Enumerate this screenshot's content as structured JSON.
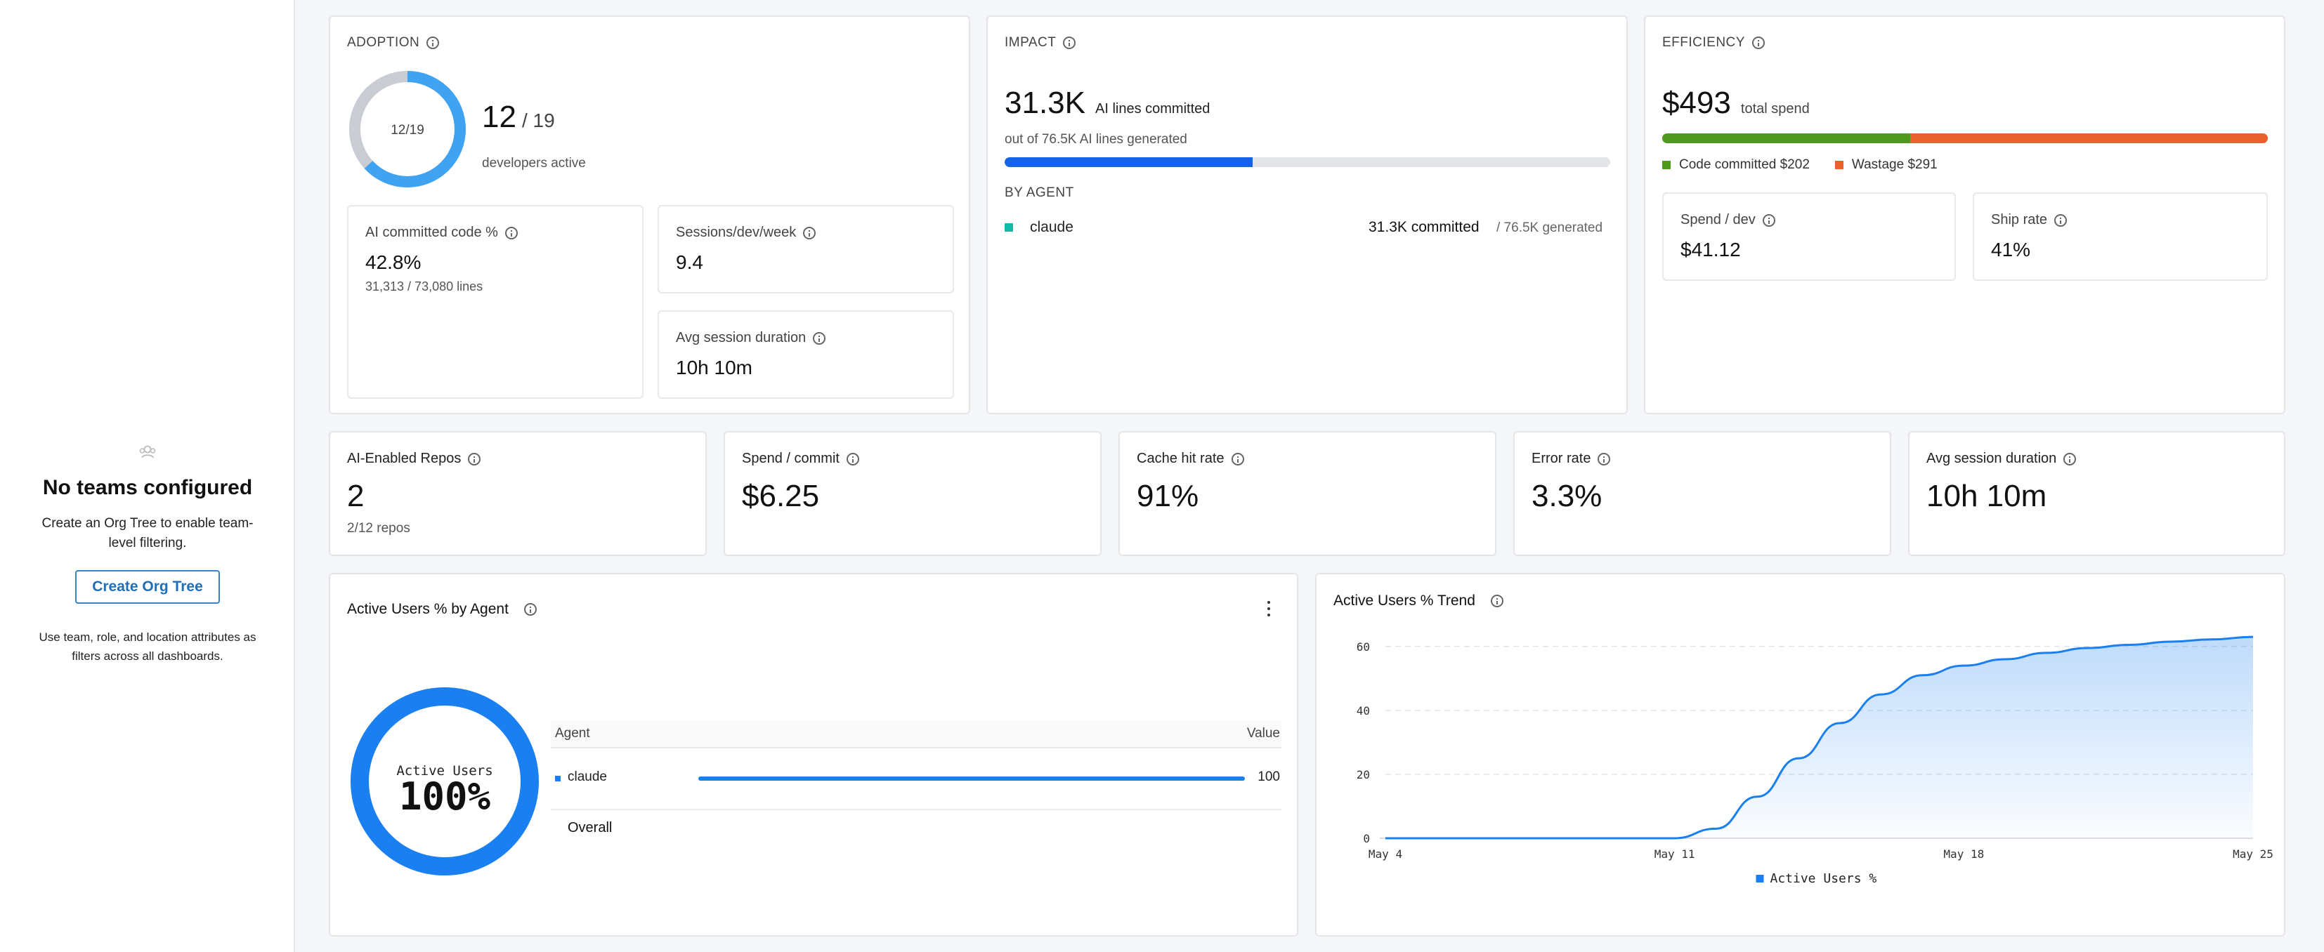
{
  "sidebar": {
    "empty_title": "No teams configured",
    "empty_desc": "Create an Org Tree to enable team-level filtering.",
    "create_button": "Create Org Tree",
    "footnote": "Use team, role, and location attributes as filters across all dashboards."
  },
  "adoption": {
    "caption": "ADOPTION",
    "ring_label": "12/19",
    "active_count": "12",
    "total": "/ 19",
    "active_label": "developers active",
    "ai_code_label": "AI committed code %",
    "ai_code_value": "42.8%",
    "ai_code_lines": "31,313 / 73,080 lines",
    "sessions_label": "Sessions/dev/week",
    "sessions_value": "9.4",
    "avg_session_label": "Avg session duration",
    "avg_session_value": "10h 10m",
    "active_fraction": 0.632
  },
  "impact": {
    "caption": "IMPACT",
    "lines_committed": "31.3K",
    "lines_committed_label": "AI lines committed",
    "generated_note": "out of 76.5K AI lines generated",
    "progress_fraction": 0.41,
    "by_agent_caption": "BY AGENT",
    "agent_name": "claude",
    "agent_committed": "31.3K committed",
    "agent_generated": "/ 76.5K generated",
    "agent_color": "#14b8a6"
  },
  "efficiency": {
    "caption": "EFFICIENCY",
    "total_spend": "$493",
    "total_spend_label": "total spend",
    "committed_fraction": 0.41,
    "committed_label": "Code committed $202",
    "wastage_label": "Wastage $291",
    "committed_color": "#4d9a1f",
    "wastage_color": "#e8612c",
    "spend_dev_label": "Spend / dev",
    "spend_dev_value": "$41.12",
    "ship_rate_label": "Ship rate",
    "ship_rate_value": "41%"
  },
  "kpis": [
    {
      "label": "AI-Enabled Repos",
      "value": "2",
      "sub": "2/12 repos"
    },
    {
      "label": "Spend / commit",
      "value": "$6.25",
      "sub": ""
    },
    {
      "label": "Cache hit rate",
      "value": "91%",
      "sub": ""
    },
    {
      "label": "Error rate",
      "value": "3.3%",
      "sub": ""
    },
    {
      "label": "Avg session duration",
      "value": "10h 10m",
      "sub": ""
    }
  ],
  "agent_panel": {
    "title": "Active Users % by Agent",
    "donut_label": "Active Users",
    "donut_value": "100%",
    "col_agent": "Agent",
    "col_value": "Value",
    "row_agent": "claude",
    "row_value": "100",
    "row_fraction": 1.0,
    "overall_label": "Overall",
    "accent": "#1a7ff0"
  },
  "trend_panel": {
    "title": "Active Users % Trend",
    "legend": "Active Users %"
  },
  "chart_data": {
    "type": "area",
    "title": "Active Users % Trend",
    "x": [
      "May 4",
      "May 11",
      "May 18",
      "May 25"
    ],
    "x_days": [
      0,
      7,
      14,
      21
    ],
    "ylim": [
      0,
      65
    ],
    "yticks": [
      0,
      20,
      40,
      60
    ],
    "series": [
      {
        "name": "Active Users %",
        "points": [
          [
            0,
            0
          ],
          [
            3,
            0
          ],
          [
            6,
            0
          ],
          [
            7,
            0
          ],
          [
            8,
            3
          ],
          [
            9,
            13
          ],
          [
            10,
            25
          ],
          [
            11,
            36
          ],
          [
            12,
            45
          ],
          [
            13,
            51
          ],
          [
            14,
            54
          ],
          [
            15,
            56
          ],
          [
            16,
            58
          ],
          [
            17,
            59.5
          ],
          [
            18,
            60.5
          ],
          [
            19,
            61.5
          ],
          [
            20,
            62.2
          ],
          [
            21,
            63
          ]
        ],
        "color": "#1a7ff0"
      }
    ],
    "grid": true,
    "legend_position": "bottom"
  }
}
